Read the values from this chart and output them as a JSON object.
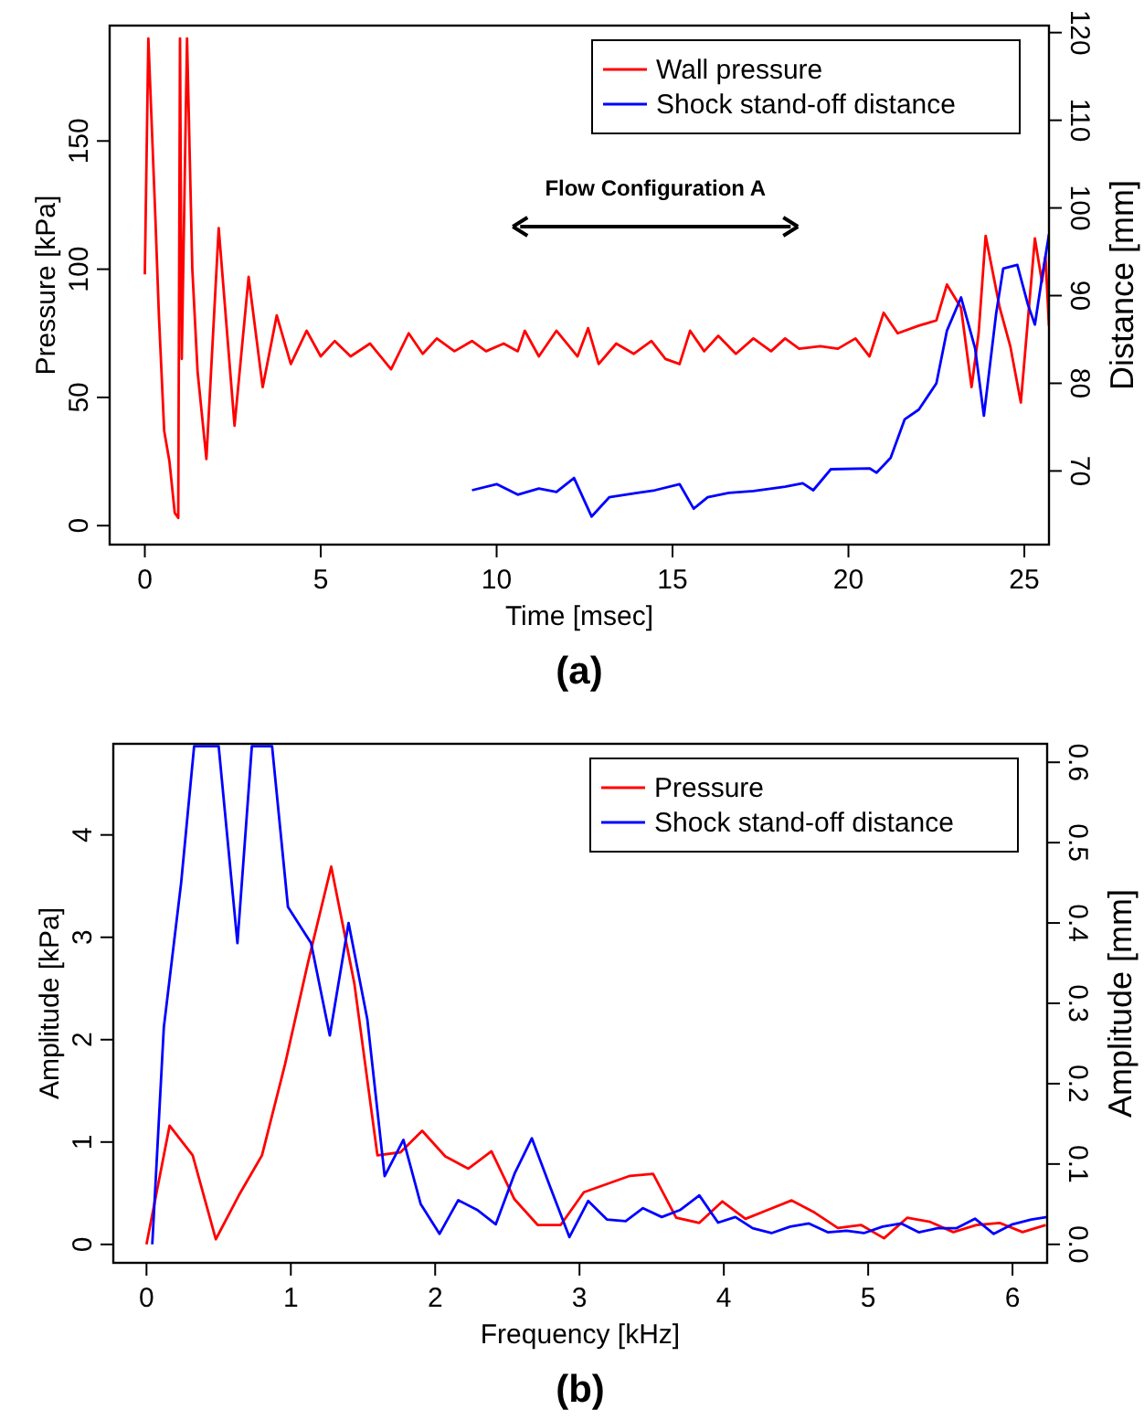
{
  "chart_data": [
    {
      "type": "line",
      "title": "(a)",
      "xlabel": "Time [msec]",
      "ylabel": "Pressure [kPa]",
      "y2label": "Distance [mm]",
      "xlim": [
        -1,
        25.7
      ],
      "ylim": [
        -7.4,
        195
      ],
      "y2lim": [
        61.6,
        120.8
      ],
      "xticks": [
        0,
        5,
        10,
        15,
        20,
        25
      ],
      "yticks": [
        0,
        50,
        100,
        150
      ],
      "y2ticks": [
        70,
        80,
        90,
        100,
        110,
        120
      ],
      "grid": false,
      "legend": "top right",
      "marker": "none",
      "annotations": [
        "Flow Configuration A"
      ],
      "series": [
        {
          "name": "Wall pressure",
          "color": "#ff0000",
          "x": [
            0,
            0.1,
            0.3,
            0.4,
            0.55,
            0.7,
            0.85,
            0.95,
            1.0,
            1.05,
            1.2,
            1.35,
            1.5,
            1.75,
            2.1,
            2.55,
            2.95,
            3.35,
            3.75,
            4.15,
            4.6,
            5.0,
            5.4,
            5.85,
            6.4,
            7.0,
            7.5,
            7.9,
            8.3,
            8.8,
            9.3,
            9.7,
            10.2,
            10.6,
            10.8,
            11.2,
            11.7,
            12.3,
            12.6,
            12.9,
            13.4,
            13.9,
            14.4,
            14.8,
            15.2,
            15.5,
            15.9,
            16.3,
            16.8,
            17.3,
            17.8,
            18.2,
            18.6,
            19.2,
            19.7,
            20.2,
            20.6,
            21.0,
            21.4,
            22.0,
            22.5,
            22.8,
            23.2,
            23.5,
            23.7,
            23.9,
            24.3,
            24.6,
            24.9,
            25.1,
            25.3,
            25.5,
            25.6,
            25.7
          ],
          "values": [
            98,
            190,
            120,
            82,
            37,
            25,
            5,
            3,
            190,
            65,
            190,
            100,
            60,
            26,
            116,
            39,
            97,
            54,
            82,
            63,
            76,
            66,
            72,
            66,
            71,
            61,
            75,
            67,
            73,
            68,
            72,
            68,
            71,
            68,
            76,
            66,
            76,
            66,
            77,
            63,
            71,
            67,
            72,
            65,
            63,
            76,
            68,
            74,
            67,
            73,
            68,
            73,
            69,
            70,
            69,
            73,
            66,
            83,
            75,
            78,
            80,
            94,
            85,
            54,
            75,
            113,
            85,
            70,
            48,
            80,
            112,
            95,
            105,
            78
          ]
        },
        {
          "name": "Shock stand-off distance",
          "color": "#0000ff",
          "axis": "y2",
          "x": [
            9.3,
            10.0,
            10.6,
            11.2,
            11.7,
            12.2,
            12.7,
            13.2,
            14.0,
            14.5,
            15.2,
            15.6,
            16.0,
            16.6,
            17.3,
            18.2,
            18.7,
            19.0,
            19.5,
            20.6,
            20.8,
            21.2,
            21.6,
            22.0,
            22.5,
            22.8,
            23.2,
            23.6,
            23.85,
            24.2,
            24.4,
            24.8,
            25.1,
            25.3,
            25.5,
            25.7
          ],
          "values": [
            67.8,
            68.5,
            67.3,
            68,
            67.6,
            69.2,
            64.8,
            67,
            67.5,
            67.8,
            68.5,
            65.7,
            67,
            67.5,
            67.7,
            68.2,
            68.6,
            67.8,
            70.2,
            70.3,
            69.8,
            71.5,
            75.9,
            77,
            80,
            86,
            89.8,
            84,
            76.3,
            88,
            93.1,
            93.5,
            89,
            86.7,
            92,
            97
          ]
        }
      ]
    },
    {
      "type": "line",
      "title": "(b)",
      "xlabel": "Frequency [kHz]",
      "ylabel": "Amplitude [kPa]",
      "y2label": "Amplitude [mm]",
      "xlim": [
        -0.23,
        6.24
      ],
      "ylim": [
        -0.18,
        4.89
      ],
      "y2lim": [
        -0.023,
        0.623
      ],
      "xticks": [
        0,
        1,
        2,
        3,
        4,
        5,
        6
      ],
      "yticks": [
        0,
        1,
        2,
        3,
        4
      ],
      "y2ticks": [
        {
          "value": 0,
          "label": "0.0"
        },
        {
          "value": 0.1,
          "label": "0.1"
        },
        {
          "value": 0.2,
          "label": "0.2"
        },
        {
          "value": 0.3,
          "label": "0.3"
        },
        {
          "value": 0.4,
          "label": "0.4"
        },
        {
          "value": 0.5,
          "label": "0.5"
        },
        {
          "value": 0.6,
          "label": "0.6"
        }
      ],
      "grid": false,
      "legend": "top right",
      "marker": "none",
      "series": [
        {
          "name": "Pressure",
          "color": "#ff0000",
          "x": [
            0,
            0.16,
            0.32,
            0.48,
            0.64,
            0.8,
            0.96,
            1.12,
            1.28,
            1.44,
            1.6,
            1.76,
            1.91,
            2.07,
            2.23,
            2.39,
            2.55,
            2.71,
            2.87,
            3.03,
            3.19,
            3.35,
            3.51,
            3.67,
            3.83,
            3.99,
            4.15,
            4.31,
            4.47,
            4.63,
            4.79,
            4.95,
            5.11,
            5.27,
            5.43,
            5.59,
            5.75,
            5.91,
            6.07,
            6.23
          ],
          "values": [
            0,
            1.16,
            0.87,
            0.05,
            0.48,
            0.87,
            1.76,
            2.76,
            3.69,
            2.55,
            0.87,
            0.9,
            1.11,
            0.86,
            0.74,
            0.91,
            0.44,
            0.19,
            0.19,
            0.51,
            0.59,
            0.67,
            0.69,
            0.26,
            0.21,
            0.42,
            0.25,
            0.34,
            0.43,
            0.31,
            0.16,
            0.19,
            0.06,
            0.26,
            0.22,
            0.12,
            0.19,
            0.21,
            0.12,
            0.19
          ]
        },
        {
          "name": "Shock stand-off distance",
          "color": "#0000ff",
          "axis": "y2",
          "x": [
            0.04,
            0.12,
            0.24,
            0.33,
            0.5,
            0.63,
            0.73,
            0.87,
            0.98,
            1.14,
            1.27,
            1.4,
            1.53,
            1.65,
            1.78,
            1.9,
            2.03,
            2.16,
            2.29,
            2.42,
            2.55,
            2.67,
            2.8,
            2.93,
            3.06,
            3.19,
            3.32,
            3.44,
            3.57,
            3.7,
            3.83,
            3.96,
            4.08,
            4.2,
            4.33,
            4.46,
            4.59,
            4.72,
            4.85,
            4.97,
            5.1,
            5.23,
            5.35,
            5.48,
            5.61,
            5.74,
            5.87,
            6.0,
            6.13,
            6.24
          ],
          "values": [
            0,
            0.27,
            0.45,
            0.62,
            0.62,
            0.375,
            0.62,
            0.62,
            0.42,
            0.375,
            0.26,
            0.4,
            0.28,
            0.085,
            0.13,
            0.05,
            0.013,
            0.055,
            0.043,
            0.025,
            0.088,
            0.132,
            0.07,
            0.009,
            0.054,
            0.031,
            0.029,
            0.045,
            0.034,
            0.043,
            0.061,
            0.027,
            0.034,
            0.02,
            0.014,
            0.022,
            0.026,
            0.015,
            0.017,
            0.014,
            0.022,
            0.026,
            0.015,
            0.02,
            0.02,
            0.032,
            0.013,
            0.025,
            0.031,
            0.034
          ]
        }
      ]
    }
  ]
}
